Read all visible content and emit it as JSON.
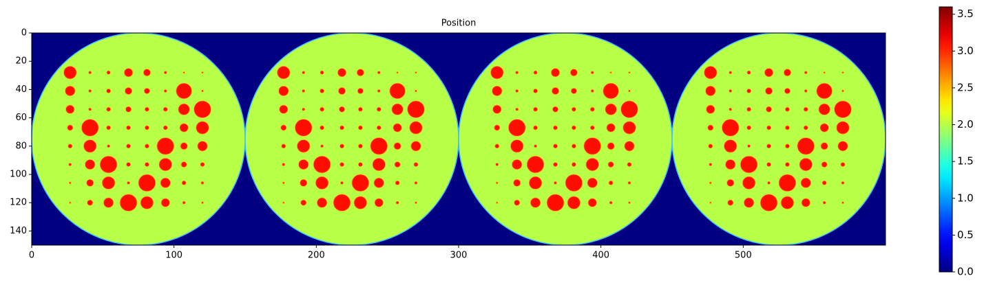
{
  "chart_data": {
    "type": "image",
    "title": "Position",
    "colormap": "jet",
    "xlim": [
      0,
      600
    ],
    "ylim": [
      150,
      0
    ],
    "xticks": [
      0,
      100,
      200,
      300,
      400,
      500
    ],
    "yticks": [
      0,
      20,
      40,
      60,
      80,
      100,
      120,
      140
    ],
    "clim": [
      0,
      3.6
    ],
    "cticks": [
      {
        "value": 0,
        "label": "0.0"
      },
      {
        "value": 0.5,
        "label": "0.5"
      },
      {
        "value": 1,
        "label": "1.0"
      },
      {
        "value": 1.5,
        "label": "1.5"
      },
      {
        "value": 2,
        "label": "2.0"
      },
      {
        "value": 2.5,
        "label": "2.5"
      },
      {
        "value": 3,
        "label": "3.0"
      },
      {
        "value": 3.5,
        "label": "3.5"
      }
    ],
    "background_value": 0,
    "disk_value": 2.0,
    "insert_value": 3.1,
    "disk_centers": [
      75,
      225,
      375,
      525
    ],
    "disk_center_y": 75,
    "disk_radius": 75,
    "insert_x": [
      27,
      41,
      54,
      68,
      81,
      94,
      107,
      120
    ],
    "insert_y": [
      28,
      41,
      54,
      67,
      80,
      93,
      106,
      120
    ],
    "insert_radii": [
      [
        4.5,
        1,
        1.3,
        3,
        2.5,
        1,
        0.6,
        0.6
      ],
      [
        3.5,
        1,
        1.5,
        2.5,
        2,
        1,
        5.5,
        0.7
      ],
      [
        3,
        1,
        1.5,
        2,
        1.5,
        1.5,
        4,
        6
      ],
      [
        2,
        6,
        1.5,
        1.5,
        1.5,
        1.5,
        3,
        4.5
      ],
      [
        1.5,
        4.5,
        1,
        1.5,
        1.5,
        6,
        2.5,
        3.5
      ],
      [
        1,
        3.5,
        6,
        1.5,
        1.5,
        4.5,
        2,
        1.5
      ],
      [
        0.7,
        2.5,
        4.5,
        1,
        6,
        3.5,
        1.5,
        1
      ],
      [
        0.6,
        2,
        3.5,
        6,
        4.5,
        3,
        1,
        0.7
      ]
    ]
  }
}
